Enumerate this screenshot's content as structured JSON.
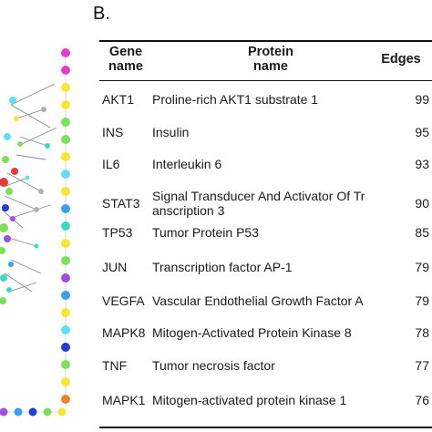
{
  "panel_label": "B.",
  "table": {
    "headers": {
      "gene": [
        "Gene",
        "name"
      ],
      "protein": [
        "Protein",
        "name"
      ],
      "edges": "Edges"
    },
    "rows": [
      {
        "gene": "AKT1",
        "protein": [
          "Proline-rich AKT1 substrate 1"
        ],
        "edges": "99"
      },
      {
        "gene": "INS",
        "protein": [
          "Insulin"
        ],
        "edges": "95"
      },
      {
        "gene": "IL6",
        "protein": [
          "Interleukin 6"
        ],
        "edges": "93"
      },
      {
        "gene": "STAT3",
        "protein": [
          "Signal Transducer And Activator Of Tr",
          "anscription 3"
        ],
        "edges": "90"
      },
      {
        "gene": "TP53",
        "protein": [
          "Tumor Protein P53"
        ],
        "edges": "85"
      },
      {
        "gene": "JUN",
        "protein": [
          "Transcription factor AP-1"
        ],
        "edges": "79"
      },
      {
        "gene": "VEGFA",
        "protein": [
          "Vascular Endothelial Growth Factor A"
        ],
        "edges": "79"
      },
      {
        "gene": "MAPK8",
        "protein": [
          "Mitogen-Activated Protein Kinase 8"
        ],
        "edges": "78"
      },
      {
        "gene": "TNF",
        "protein": [
          "Tumor necrosis factor"
        ],
        "edges": "77"
      },
      {
        "gene": "MAPK1",
        "protein": [
          "Mitogen-activated protein kinase 1"
        ],
        "edges": "76"
      }
    ]
  },
  "network": {
    "node_colors": [
      "#e040c8",
      "#f5e63a",
      "#7ee05a",
      "#3aa0e8",
      "#2040d0",
      "#e83a3a",
      "#a050e0",
      "#40d8c0",
      "#f08030",
      "#60e0f0",
      "#b0b0b0"
    ]
  }
}
